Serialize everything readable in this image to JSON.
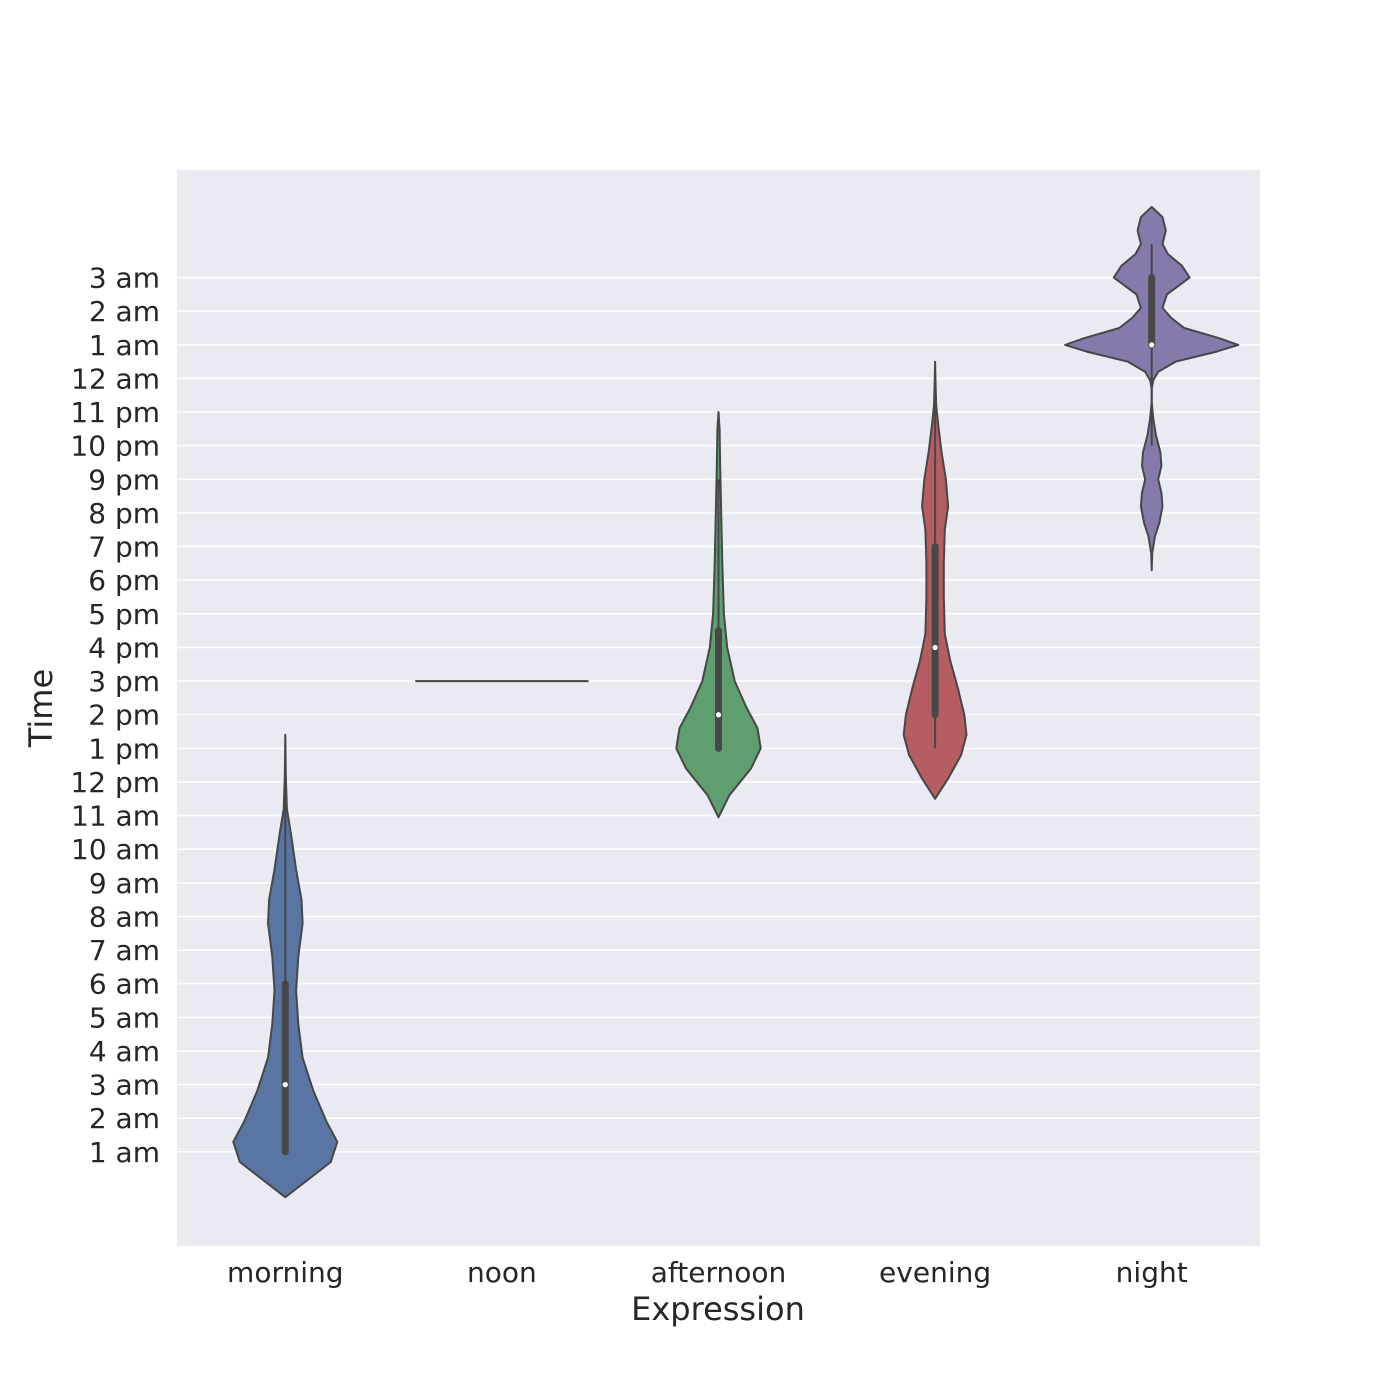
{
  "chart_data": {
    "type": "violin",
    "title": "",
    "xlabel": "Expression",
    "ylabel": "Time",
    "categories": [
      "morning",
      "noon",
      "afternoon",
      "evening",
      "night"
    ],
    "y_ticks": [
      {
        "value": 1,
        "label": "1 am"
      },
      {
        "value": 2,
        "label": "2 am"
      },
      {
        "value": 3,
        "label": "3 am"
      },
      {
        "value": 4,
        "label": "4 am"
      },
      {
        "value": 5,
        "label": "5 am"
      },
      {
        "value": 6,
        "label": "6 am"
      },
      {
        "value": 7,
        "label": "7 am"
      },
      {
        "value": 8,
        "label": "8 am"
      },
      {
        "value": 9,
        "label": "9 am"
      },
      {
        "value": 10,
        "label": "10 am"
      },
      {
        "value": 11,
        "label": "11 am"
      },
      {
        "value": 12,
        "label": "12 pm"
      },
      {
        "value": 13,
        "label": "1 pm"
      },
      {
        "value": 14,
        "label": "2 pm"
      },
      {
        "value": 15,
        "label": "3 pm"
      },
      {
        "value": 16,
        "label": "4 pm"
      },
      {
        "value": 17,
        "label": "5 pm"
      },
      {
        "value": 18,
        "label": "6 pm"
      },
      {
        "value": 19,
        "label": "7 pm"
      },
      {
        "value": 20,
        "label": "8 pm"
      },
      {
        "value": 21,
        "label": "9 pm"
      },
      {
        "value": 22,
        "label": "10 pm"
      },
      {
        "value": 23,
        "label": "11 pm"
      },
      {
        "value": 24,
        "label": "12 am"
      },
      {
        "value": 25,
        "label": "1 am"
      },
      {
        "value": 26,
        "label": "2 am"
      },
      {
        "value": 27,
        "label": "3 am"
      }
    ],
    "ylim": [
      -1.8,
      30.2
    ],
    "grid": true,
    "violins": [
      {
        "category": "morning",
        "color": "#5875a4",
        "whisker": [
          1,
          12
        ],
        "quartiles": [
          1,
          6
        ],
        "median": 3,
        "profile": [
          [
            -0.35,
            0.0
          ],
          [
            0.2,
            0.22
          ],
          [
            0.7,
            0.42
          ],
          [
            1.3,
            0.48
          ],
          [
            1.9,
            0.38
          ],
          [
            2.8,
            0.26
          ],
          [
            3.8,
            0.16
          ],
          [
            4.8,
            0.12
          ],
          [
            5.8,
            0.1
          ],
          [
            6.8,
            0.12
          ],
          [
            7.8,
            0.16
          ],
          [
            8.5,
            0.15
          ],
          [
            9.4,
            0.1
          ],
          [
            10.5,
            0.05
          ],
          [
            11.2,
            0.015
          ],
          [
            12.2,
            0.005
          ],
          [
            13.4,
            0.0
          ]
        ]
      },
      {
        "category": "noon",
        "color": "#cc8963",
        "flat": true,
        "value": 15,
        "half_width": 0.8
      },
      {
        "category": "afternoon",
        "color": "#5f9e6e",
        "whisker": [
          13,
          21
        ],
        "quartiles": [
          13,
          16.5
        ],
        "median": 14,
        "profile": [
          [
            10.95,
            0.0
          ],
          [
            11.6,
            0.1
          ],
          [
            12.4,
            0.3
          ],
          [
            13.0,
            0.39
          ],
          [
            13.6,
            0.36
          ],
          [
            14.2,
            0.26
          ],
          [
            15.0,
            0.15
          ],
          [
            16.0,
            0.08
          ],
          [
            17.0,
            0.05
          ],
          [
            18.5,
            0.035
          ],
          [
            20.0,
            0.025
          ],
          [
            21.5,
            0.015
          ],
          [
            22.5,
            0.01
          ],
          [
            23.0,
            0.0
          ]
        ]
      },
      {
        "category": "evening",
        "color": "#b55d60",
        "whisker": [
          13,
          23.5
        ],
        "quartiles": [
          14,
          19
        ],
        "median": 16,
        "profile": [
          [
            11.5,
            0.0
          ],
          [
            12.1,
            0.12
          ],
          [
            12.8,
            0.24
          ],
          [
            13.4,
            0.29
          ],
          [
            14.0,
            0.27
          ],
          [
            14.8,
            0.21
          ],
          [
            15.6,
            0.14
          ],
          [
            16.4,
            0.09
          ],
          [
            17.5,
            0.08
          ],
          [
            18.5,
            0.08
          ],
          [
            19.5,
            0.09
          ],
          [
            20.2,
            0.12
          ],
          [
            21.0,
            0.1
          ],
          [
            21.8,
            0.06
          ],
          [
            22.6,
            0.03
          ],
          [
            23.2,
            0.01
          ],
          [
            23.8,
            0.005
          ],
          [
            24.5,
            0.0
          ]
        ]
      },
      {
        "category": "night",
        "color": "#857aab",
        "whisker": [
          22,
          28
        ],
        "quartiles": [
          25,
          27
        ],
        "median": 25,
        "profile": [
          [
            18.3,
            0.0
          ],
          [
            18.8,
            0.005
          ],
          [
            19.3,
            0.03
          ],
          [
            19.7,
            0.07
          ],
          [
            20.2,
            0.1
          ],
          [
            20.6,
            0.09
          ],
          [
            21.0,
            0.06
          ],
          [
            21.4,
            0.09
          ],
          [
            21.8,
            0.08
          ],
          [
            22.3,
            0.04
          ],
          [
            22.8,
            0.015
          ],
          [
            23.3,
            0.0
          ],
          [
            23.7,
            0.0
          ],
          [
            23.95,
            0.015
          ],
          [
            24.2,
            0.06
          ],
          [
            24.5,
            0.22
          ],
          [
            24.8,
            0.6
          ],
          [
            25.0,
            0.8
          ],
          [
            25.2,
            0.62
          ],
          [
            25.5,
            0.3
          ],
          [
            25.8,
            0.18
          ],
          [
            26.1,
            0.1
          ],
          [
            26.5,
            0.14
          ],
          [
            27.0,
            0.35
          ],
          [
            27.35,
            0.28
          ],
          [
            27.7,
            0.15
          ],
          [
            28.0,
            0.1
          ],
          [
            28.4,
            0.13
          ],
          [
            28.8,
            0.1
          ],
          [
            29.1,
            0.0
          ]
        ]
      }
    ]
  }
}
